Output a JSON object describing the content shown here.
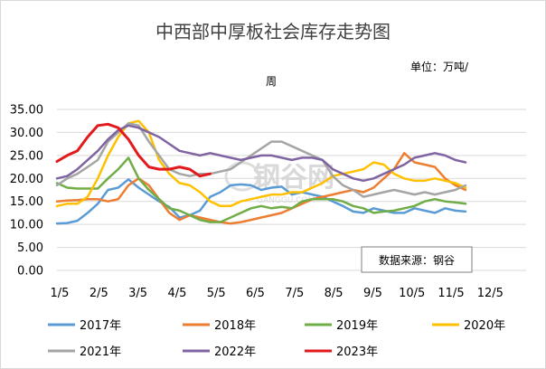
{
  "chart_data": {
    "type": "line",
    "title": "中西部中厚板社会库存走势图",
    "unit_label": "单位：万吨/",
    "unit_label_2": "周",
    "ylim": [
      0,
      35
    ],
    "yticks": [
      "0.00",
      "5.00",
      "10.00",
      "15.00",
      "20.00",
      "25.00",
      "30.00",
      "35.00"
    ],
    "xticks": [
      "1/5",
      "2/5",
      "3/5",
      "4/5",
      "5/5",
      "6/5",
      "7/5",
      "8/5",
      "9/5",
      "10/5",
      "11/5",
      "12/5"
    ],
    "grid": true,
    "legend_position": "bottom",
    "source_label": "数据来源：钢谷",
    "watermark": "钢谷网",
    "watermark_sub": "GANGGU.COM",
    "series": [
      {
        "name": "2017年",
        "color": "#5B9BD5",
        "values": [
          10.2,
          10.3,
          10.8,
          12.5,
          14.5,
          17.5,
          18.0,
          19.8,
          18.0,
          16.5,
          15.0,
          13.8,
          11.5,
          12.0,
          13.0,
          16.0,
          17.0,
          18.5,
          18.7,
          18.5,
          17.5,
          18.0,
          18.2,
          16.5,
          17.0,
          16.5,
          16.0,
          15.0,
          14.0,
          12.8,
          12.5,
          13.5,
          13.0,
          12.5,
          12.5,
          13.5,
          13.0,
          12.5,
          13.5,
          13.0,
          12.8
        ]
      },
      {
        "name": "2018年",
        "color": "#ED7D31",
        "values": [
          15.0,
          15.2,
          15.3,
          15.5,
          15.5,
          15.0,
          15.5,
          18.5,
          20.0,
          18.5,
          15.5,
          12.5,
          11.0,
          12.0,
          11.5,
          11.0,
          10.5,
          10.2,
          10.5,
          11.0,
          11.5,
          12.0,
          12.5,
          13.5,
          14.5,
          15.5,
          16.0,
          16.5,
          17.0,
          17.5,
          17.0,
          18.0,
          20.0,
          22.0,
          25.5,
          23.5,
          23.0,
          22.5,
          20.0,
          18.5,
          17.5
        ]
      },
      {
        "name": "2019年",
        "color": "#70AD47",
        "values": [
          19.0,
          18.0,
          17.8,
          17.8,
          17.8,
          20.0,
          22.0,
          24.5,
          20.0,
          17.5,
          15.5,
          13.5,
          13.0,
          12.0,
          11.0,
          10.5,
          10.5,
          11.5,
          12.5,
          13.5,
          14.0,
          13.5,
          13.8,
          13.5,
          15.0,
          15.5,
          15.5,
          15.5,
          15.0,
          14.0,
          13.5,
          12.5,
          12.8,
          13.0,
          13.5,
          14.0,
          15.0,
          15.5,
          15.0,
          14.8,
          14.5
        ]
      },
      {
        "name": "2020年",
        "color": "#FFC000",
        "values": [
          14.0,
          14.5,
          14.5,
          16.0,
          20.0,
          25.0,
          29.0,
          32.0,
          32.5,
          30.0,
          24.0,
          21.0,
          19.0,
          18.5,
          17.0,
          15.0,
          14.0,
          14.0,
          15.0,
          15.5,
          16.0,
          16.5,
          16.5,
          17.0,
          17.0,
          18.0,
          19.0,
          20.5,
          21.0,
          21.5,
          22.0,
          23.5,
          23.0,
          21.0,
          20.0,
          19.5,
          19.5,
          20.0,
          19.5,
          19.0,
          18.0
        ]
      },
      {
        "name": "2021年",
        "color": "#A5A5A5",
        "values": [
          18.5,
          20.0,
          21.0,
          22.5,
          24.0,
          28.0,
          30.0,
          32.0,
          31.5,
          28.0,
          25.0,
          22.0,
          21.0,
          20.5,
          21.0,
          21.0,
          21.5,
          22.0,
          23.5,
          25.0,
          26.5,
          28.0,
          28.0,
          27.0,
          26.0,
          25.0,
          24.0,
          20.5,
          18.5,
          17.5,
          16.0,
          16.5,
          17.0,
          17.5,
          17.0,
          16.5,
          17.0,
          16.5,
          17.0,
          17.5,
          18.5
        ]
      },
      {
        "name": "2022年",
        "color": "#8064A2",
        "values": [
          20.0,
          20.5,
          22.0,
          24.0,
          26.0,
          28.5,
          30.5,
          31.5,
          31.0,
          30.0,
          29.0,
          27.5,
          26.0,
          25.5,
          25.0,
          25.5,
          25.0,
          24.5,
          24.0,
          24.5,
          25.0,
          25.0,
          24.5,
          24.0,
          24.5,
          24.5,
          24.0,
          22.0,
          21.0,
          20.0,
          19.5,
          20.0,
          21.0,
          22.0,
          23.0,
          24.5,
          25.0,
          25.5,
          25.0,
          24.0,
          23.5
        ]
      },
      {
        "name": "2023年",
        "color": "#E31A1C",
        "values": [
          23.7,
          25.0,
          26.0,
          29.0,
          31.5,
          31.8,
          31.0,
          28.5,
          25.0,
          22.5,
          22.0,
          22.0,
          22.5,
          22.0,
          20.5,
          21.0
        ]
      }
    ]
  }
}
